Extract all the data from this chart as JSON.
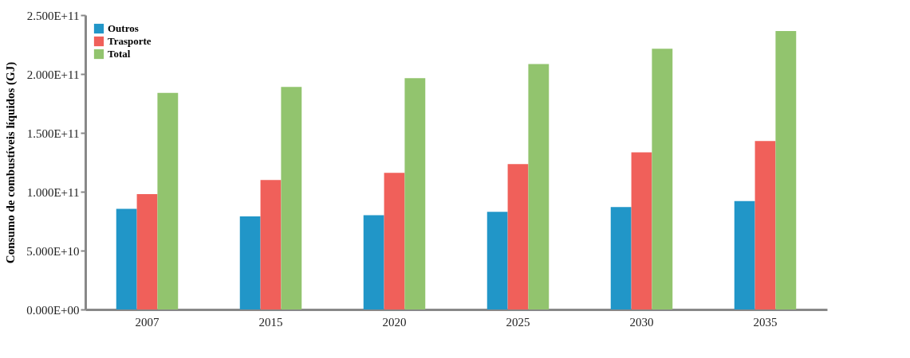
{
  "chart_data": {
    "type": "bar",
    "ylabel": "Consumo de combustíveis líquidos (GJ)",
    "categories": [
      "2007",
      "2015",
      "2020",
      "2025",
      "2030",
      "2035"
    ],
    "series": [
      {
        "name": "Outros",
        "color": "#2196c8",
        "values": [
          85500000000.0,
          79000000000.0,
          80000000000.0,
          83000000000.0,
          87000000000.0,
          92000000000.0
        ]
      },
      {
        "name": "Trasporte",
        "color": "#f0605a",
        "values": [
          98000000000.0,
          110000000000.0,
          116000000000.0,
          123500000000.0,
          133500000000.0,
          143000000000.0
        ]
      },
      {
        "name": "Total",
        "color": "#92c46e",
        "values": [
          184000000000.0,
          189000000000.0,
          196500000000.0,
          208500000000.0,
          221500000000.0,
          236500000000.0
        ]
      }
    ],
    "ylim": [
      0,
      250000000000.0
    ],
    "yticks": [
      {
        "value": 0,
        "label": "0.000E+00"
      },
      {
        "value": 50000000000.0,
        "label": "5.000E+10"
      },
      {
        "value": 100000000000.0,
        "label": "1.000E+11"
      },
      {
        "value": 150000000000.0,
        "label": "1.500E+11"
      },
      {
        "value": 200000000000.0,
        "label": "2.000E+11"
      },
      {
        "value": 250000000000.0,
        "label": "2.500E+11"
      }
    ],
    "grid": false,
    "legend": "top left"
  }
}
